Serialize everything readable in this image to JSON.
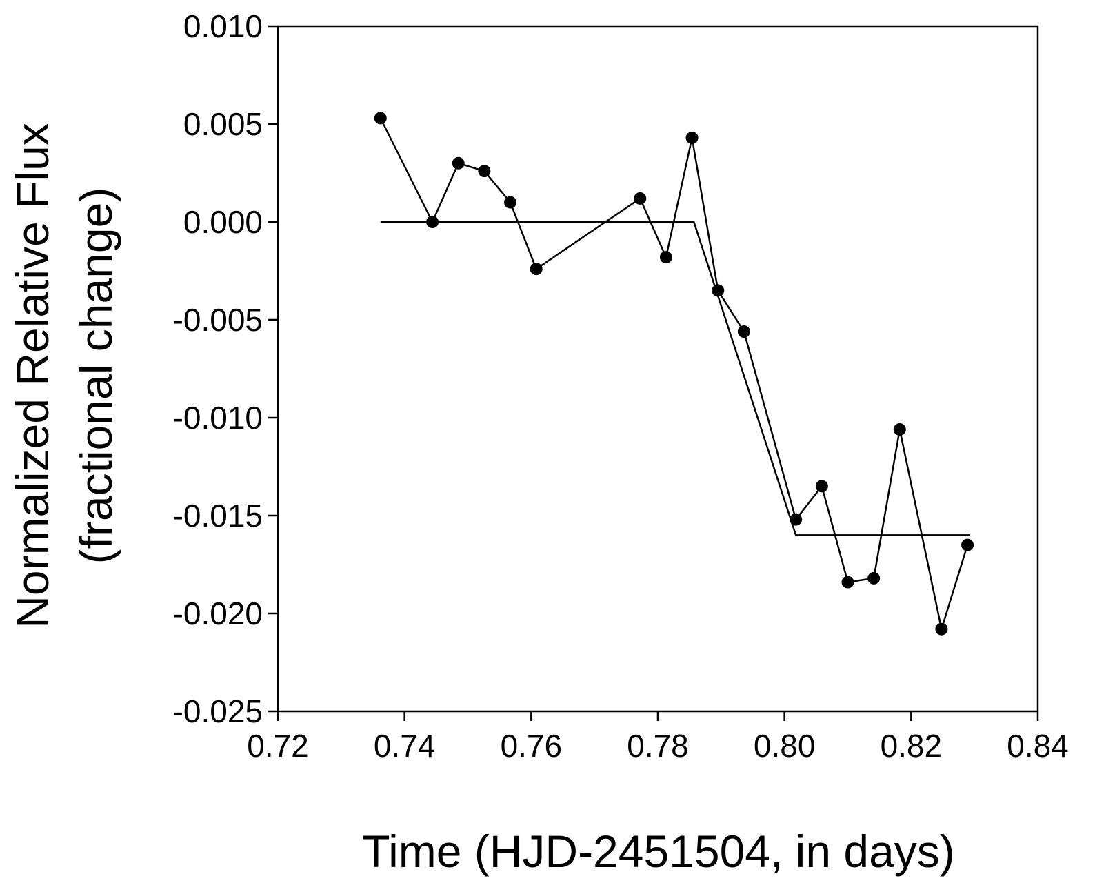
{
  "chart_data": {
    "type": "line",
    "title": "",
    "xlabel": "Time (HJD-2451504, in days)",
    "ylabel_lines": [
      "Normalized Relative Flux",
      "(fractional change)"
    ],
    "xlim": [
      0.72,
      0.84
    ],
    "ylim": [
      -0.025,
      0.01
    ],
    "x_ticks": [
      0.72,
      0.74,
      0.76,
      0.78,
      0.8,
      0.82,
      0.84
    ],
    "x_tick_labels": [
      "0.72",
      "0.74",
      "0.76",
      "0.78",
      "0.80",
      "0.82",
      "0.84"
    ],
    "y_ticks": [
      0.01,
      0.005,
      0.0,
      -0.005,
      -0.01,
      -0.015,
      -0.02,
      -0.025
    ],
    "y_tick_labels": [
      "0.010",
      "0.005",
      "0.000",
      "-0.005",
      "-0.010",
      "-0.015",
      "-0.020",
      "-0.025"
    ],
    "grid": false,
    "legend": "none",
    "series": [
      {
        "kind": "observed",
        "markers": true,
        "color": "#000000",
        "x": [
          0.7362,
          0.7444,
          0.7485,
          0.7526,
          0.7567,
          0.7608,
          0.7772,
          0.7813,
          0.7854,
          0.7895,
          0.7936,
          0.8018,
          0.8059,
          0.81,
          0.8141,
          0.8182,
          0.8248,
          0.8289
        ],
        "y": [
          0.0053,
          0.0,
          0.003,
          0.0026,
          0.001,
          -0.0024,
          0.0012,
          -0.0018,
          0.0043,
          -0.0035,
          -0.0056,
          -0.0152,
          -0.0135,
          -0.0184,
          -0.0182,
          -0.0106,
          -0.0208,
          -0.0165
        ]
      },
      {
        "kind": "model",
        "markers": false,
        "color": "#000000",
        "x": [
          0.7362,
          0.7857,
          0.8018,
          0.8293
        ],
        "y": [
          0.0,
          0.0,
          -0.016,
          -0.016
        ]
      }
    ]
  }
}
